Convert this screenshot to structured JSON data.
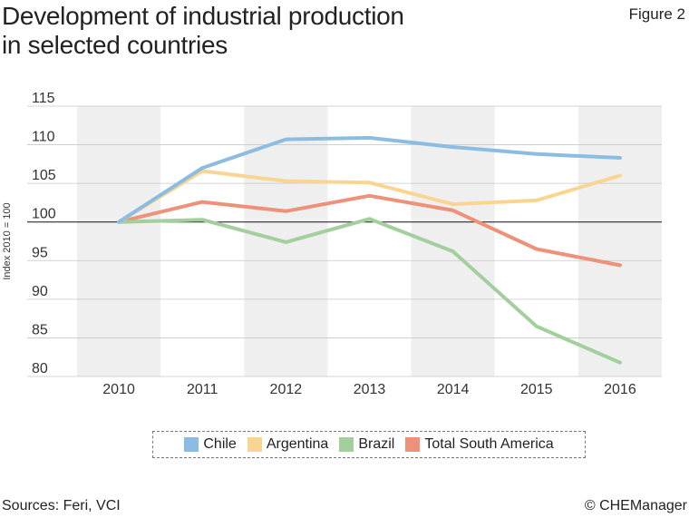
{
  "header": {
    "title_line1": "Development of industrial production",
    "title_line2": "in selected countries",
    "figure_label": "Figure 2"
  },
  "footer": {
    "source": "Sources: Feri, VCI",
    "copyright": "© CHEManager"
  },
  "chart_data": {
    "type": "line",
    "title": "Development of industrial production in selected countries",
    "xlabel": "",
    "ylabel": "Index 2010 = 100",
    "x": [
      "2010",
      "2011",
      "2012",
      "2013",
      "2014",
      "2015",
      "2016"
    ],
    "ylim": [
      80,
      115
    ],
    "yticks": [
      115,
      110,
      105,
      100,
      95,
      90,
      85,
      80
    ],
    "reference_line": 100,
    "legend_position": "bottom",
    "series": [
      {
        "name": "Chile",
        "color": "#8bbde3",
        "values": [
          100,
          107,
          110.7,
          110.9,
          109.7,
          108.8,
          108.3
        ]
      },
      {
        "name": "Argentina",
        "color": "#fad591",
        "values": [
          100,
          106.6,
          105.3,
          105.1,
          102.3,
          102.8,
          106
        ]
      },
      {
        "name": "Brazil",
        "color": "#a2cf9c",
        "values": [
          100,
          100.3,
          97.4,
          100.4,
          96.2,
          86.5,
          81.8
        ]
      },
      {
        "name": "Total South America",
        "color": "#ee9179",
        "values": [
          100,
          102.6,
          101.4,
          103.4,
          101.5,
          96.5,
          94.4
        ]
      }
    ]
  }
}
